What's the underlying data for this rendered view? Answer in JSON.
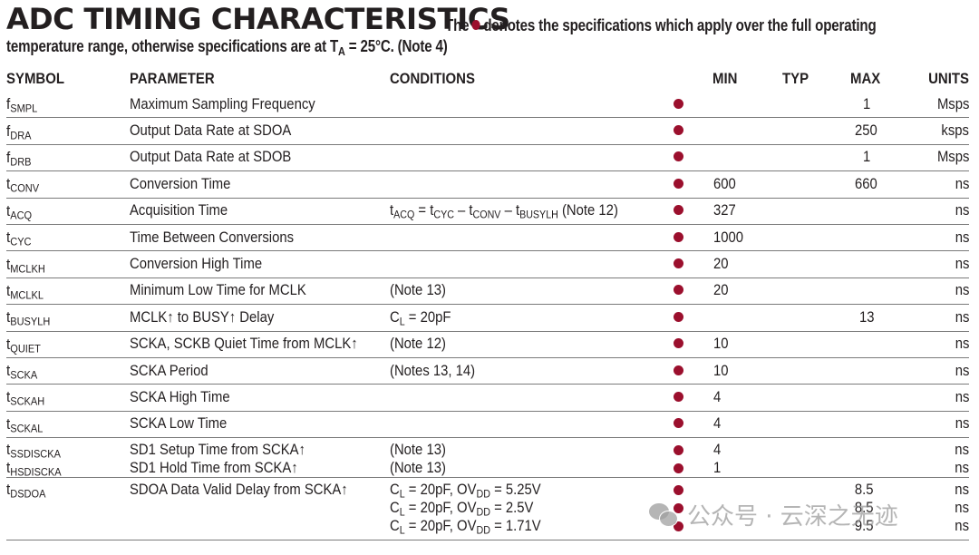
{
  "header": {
    "title": "ADC TIMING CHARACTERISTICS",
    "note_prefix": "The",
    "note_suffix": "denotes the specifications which apply over the full operating",
    "note_line2_pre": "temperature range, otherwise specifications are at T",
    "note_line2_sub": "A",
    "note_line2_post": " = 25°C. (Note 4)",
    "bullet_color": "#9b0f2d"
  },
  "columns": {
    "symbol": "SYMBOL",
    "parameter": "PARAMETER",
    "conditions": "CONDITIONS",
    "min": "MIN",
    "typ": "TYP",
    "max": "MAX",
    "units": "UNITS"
  },
  "rows": [
    {
      "sym": "f",
      "sub": "SMPL",
      "param": "Maximum Sampling Frequency",
      "cond": "",
      "min": "",
      "typ": "",
      "max": "1",
      "units": "Msps"
    },
    {
      "sym": "f",
      "sub": "DRA",
      "param": "Output Data Rate at SDOA",
      "cond": "",
      "min": "",
      "typ": "",
      "max": "250",
      "units": "ksps"
    },
    {
      "sym": "f",
      "sub": "DRB",
      "param": "Output Data Rate at SDOB",
      "cond": "",
      "min": "",
      "typ": "",
      "max": "1",
      "units": "Msps"
    },
    {
      "sym": "t",
      "sub": "CONV",
      "param": "Conversion Time",
      "cond": "",
      "min": "600",
      "typ": "",
      "max": "660",
      "units": "ns"
    },
    {
      "sym": "t",
      "sub": "ACQ",
      "param": "Acquisition Time",
      "cond_parts": [
        "t",
        "ACQ",
        " = t",
        "CYC",
        " – t",
        "CONV",
        " – t",
        "BUSYLH",
        " (Note 12)"
      ],
      "min": "327",
      "typ": "",
      "max": "",
      "units": "ns"
    },
    {
      "sym": "t",
      "sub": "CYC",
      "param": "Time Between Conversions",
      "cond": "",
      "min": "1000",
      "typ": "",
      "max": "",
      "units": "ns"
    },
    {
      "sym": "t",
      "sub": "MCLKH",
      "param": "Conversion High Time",
      "cond": "",
      "min": "20",
      "typ": "",
      "max": "",
      "units": "ns"
    },
    {
      "sym": "t",
      "sub": "MCLKL",
      "param": "Minimum Low Time for MCLK",
      "cond": "(Note 13)",
      "min": "20",
      "typ": "",
      "max": "",
      "units": "ns"
    },
    {
      "sym": "t",
      "sub": "BUSYLH",
      "param": "MCLK↑ to BUSY↑ Delay",
      "cond_parts": [
        "C",
        "L",
        " = 20pF"
      ],
      "min": "",
      "typ": "",
      "max": "13",
      "units": "ns"
    },
    {
      "sym": "t",
      "sub": "QUIET",
      "param": "SCKA, SCKB Quiet Time from MCLK↑",
      "cond": "(Note 12)",
      "min": "10",
      "typ": "",
      "max": "",
      "units": "ns"
    },
    {
      "sym": "t",
      "sub": "SCKA",
      "param": "SCKA Period",
      "cond": "(Notes 13, 14)",
      "min": "10",
      "typ": "",
      "max": "",
      "units": "ns"
    },
    {
      "sym": "t",
      "sub": "SCKAH",
      "param": "SCKA High Time",
      "cond": "",
      "min": "4",
      "typ": "",
      "max": "",
      "units": "ns"
    },
    {
      "sym": "t",
      "sub": "SCKAL",
      "param": "SCKA Low Time",
      "cond": "",
      "min": "4",
      "typ": "",
      "max": "",
      "units": "ns"
    },
    {
      "group": [
        {
          "sym": "t",
          "sub": "SSDISCKA",
          "param": "SD1 Setup Time from SCKA↑",
          "cond": "(Note 13)",
          "min": "4",
          "typ": "",
          "max": "",
          "units": "ns"
        },
        {
          "sym": "t",
          "sub": "HSDISCKA",
          "param": "SD1 Hold Time from SCKA↑",
          "cond": "(Note 13)",
          "min": "1",
          "typ": "",
          "max": "",
          "units": "ns"
        }
      ]
    },
    {
      "sym": "t",
      "sub": "DSDOA",
      "param": "SDOA Data Valid Delay from SCKA↑",
      "conds": [
        {
          "cond_parts": [
            "C",
            "L",
            " = 20pF, OV",
            "DD",
            " = 5.25V"
          ],
          "min": "",
          "typ": "",
          "max": "8.5",
          "units": "ns"
        },
        {
          "cond_parts": [
            "C",
            "L",
            " = 20pF, OV",
            "DD",
            " = 2.5V"
          ],
          "min": "",
          "typ": "",
          "max": "8.5",
          "units": "ns"
        },
        {
          "cond_parts": [
            "C",
            "L",
            " = 20pF, OV",
            "DD",
            " = 1.71V"
          ],
          "min": "",
          "typ": "",
          "max": "9.5",
          "units": "ns"
        }
      ]
    }
  ],
  "watermark": "公众号 · 云深之无迹"
}
